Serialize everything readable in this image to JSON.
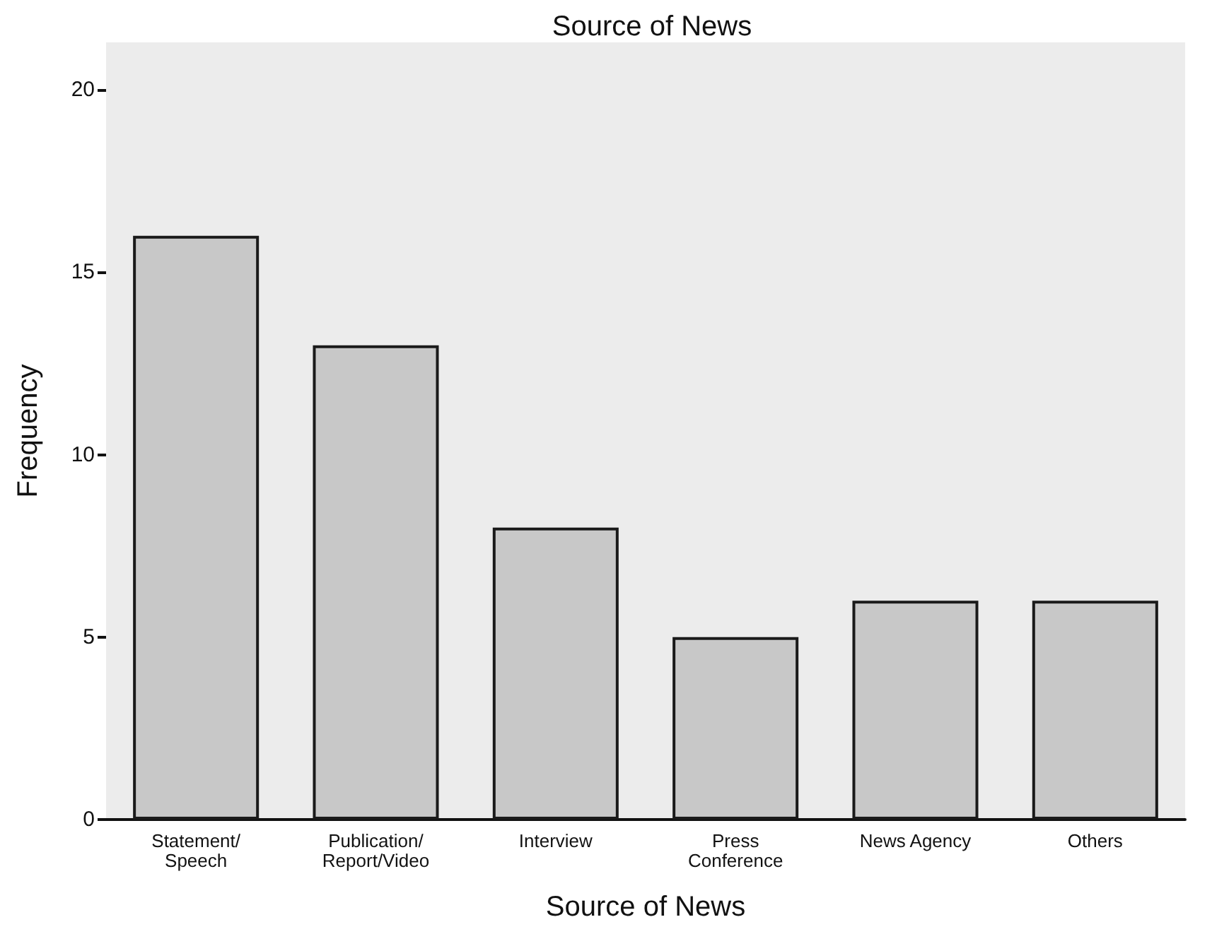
{
  "chart_data": {
    "type": "bar",
    "title": "Source of News",
    "xlabel": "Source of News",
    "ylabel": "Frequency",
    "categories": [
      "Statement/\nSpeech",
      "Publication/\nReport/Video",
      "Interview",
      "Press\nConference",
      "News Agency",
      "Others"
    ],
    "values": [
      16,
      13,
      8,
      5,
      6,
      6
    ],
    "color": "#c8c8c8",
    "ylim": [
      0,
      21.3
    ],
    "yticks": [
      0,
      5,
      10,
      15,
      20
    ],
    "grid": false
  }
}
